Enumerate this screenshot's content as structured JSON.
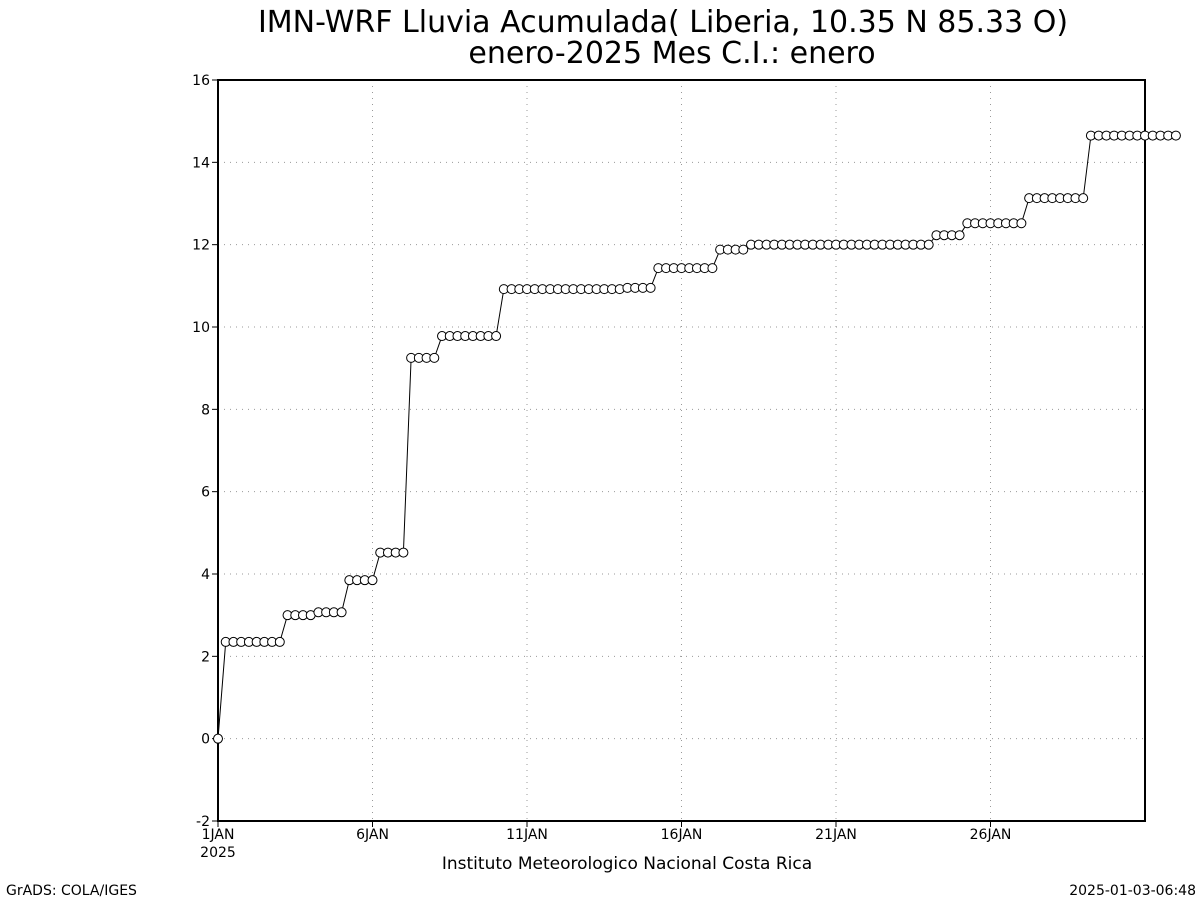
{
  "chart_data": {
    "type": "line",
    "title": "IMN-WRF  Lluvia Acumulada( Liberia, 10.35  N 85.33  O)",
    "subtitle": "enero-2025 Mes C.I.: enero",
    "xlabel": "Instituto Meteorologico Nacional Costa Rica",
    "ylabel": "",
    "ylim": [
      -2,
      16
    ],
    "yticks": [
      "-2",
      "0",
      "2",
      "4",
      "6",
      "8",
      "10",
      "12",
      "14",
      "16"
    ],
    "xlim": [
      0,
      120
    ],
    "xticks": [
      {
        "value": 0,
        "label": "1JAN",
        "sublabel": "2025"
      },
      {
        "value": 20,
        "label": "6JAN",
        "sublabel": ""
      },
      {
        "value": 40,
        "label": "11JAN",
        "sublabel": ""
      },
      {
        "value": 60,
        "label": "16JAN",
        "sublabel": ""
      },
      {
        "value": 80,
        "label": "21JAN",
        "sublabel": ""
      },
      {
        "value": 100,
        "label": "26JAN",
        "sublabel": ""
      }
    ],
    "x_step": "6-hourly from 1JAN 2025 00Z",
    "grid": true,
    "marker": "open-circle",
    "series": [
      {
        "values": [
          0,
          2.35,
          2.35,
          2.35,
          2.35,
          2.35,
          2.35,
          2.35,
          2.35,
          3,
          3,
          3,
          3,
          3.07,
          3.07,
          3.07,
          3.07,
          3.85,
          3.85,
          3.85,
          3.85,
          4.52,
          4.52,
          4.52,
          4.52,
          9.25,
          9.25,
          9.25,
          9.25,
          9.78,
          9.78,
          9.78,
          9.78,
          9.78,
          9.78,
          9.78,
          9.78,
          10.92,
          10.92,
          10.92,
          10.92,
          10.92,
          10.92,
          10.92,
          10.92,
          10.92,
          10.92,
          10.92,
          10.92,
          10.92,
          10.92,
          10.92,
          10.92,
          10.95,
          10.95,
          10.95,
          10.95,
          11.43,
          11.43,
          11.43,
          11.43,
          11.43,
          11.43,
          11.43,
          11.43,
          11.88,
          11.88,
          11.88,
          11.88,
          12.0,
          12.0,
          12.0,
          12.0,
          12.0,
          12.0,
          12.0,
          12.0,
          12.0,
          12.0,
          12.0,
          12.0,
          12.0,
          12.0,
          12.0,
          12.0,
          12.0,
          12.0,
          12.0,
          12.0,
          12.0,
          12.0,
          12.0,
          12.0,
          12.23,
          12.23,
          12.23,
          12.23,
          12.52,
          12.52,
          12.52,
          12.52,
          12.52,
          12.52,
          12.52,
          12.52,
          13.13,
          13.13,
          13.13,
          13.13,
          13.13,
          13.13,
          13.13,
          13.13,
          14.65,
          14.65,
          14.65,
          14.65,
          14.65,
          14.65,
          14.65,
          14.65,
          14.65,
          14.65,
          14.65,
          14.65
        ]
      }
    ]
  },
  "footer": {
    "left": "GrADS: COLA/IGES",
    "right": "2025-01-03-06:48"
  },
  "colors": {
    "line": "#000000",
    "grid": "#999999",
    "marker_fill": "#ffffff"
  }
}
